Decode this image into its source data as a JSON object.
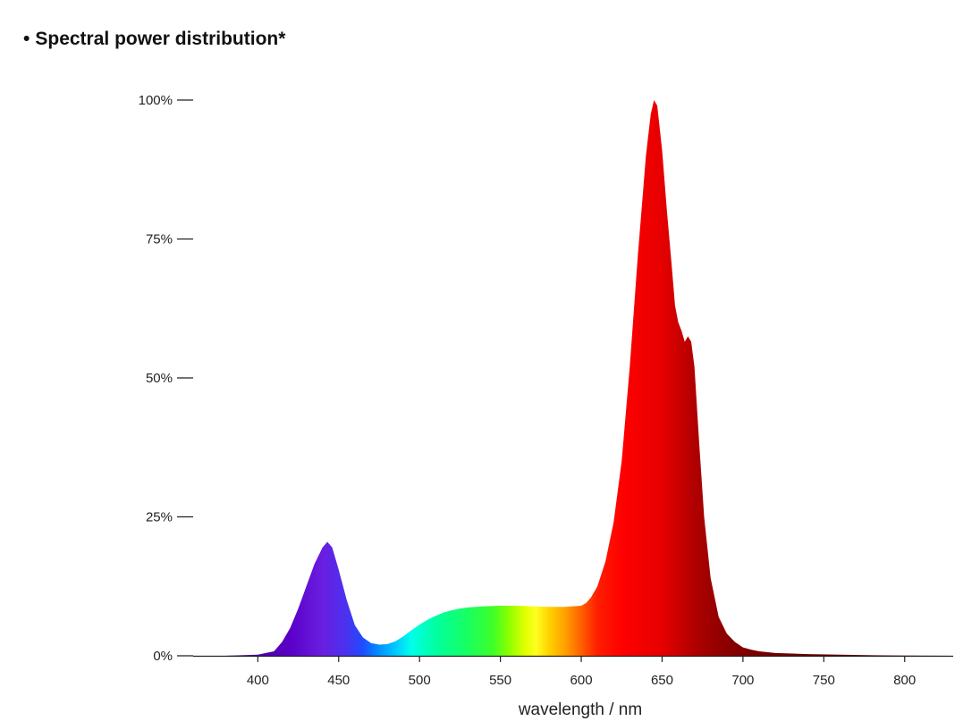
{
  "header": {
    "bullet": "•",
    "title": "Spectral power distribution*"
  },
  "chart_data": {
    "type": "area",
    "title": "Spectral power distribution*",
    "xlabel": "wavelength / nm",
    "ylabel": "",
    "xlim": [
      360,
      830
    ],
    "ylim": [
      0,
      100
    ],
    "x_ticks": [
      400,
      450,
      500,
      550,
      600,
      650,
      700,
      750,
      800
    ],
    "x_tick_labels": [
      "400",
      "450",
      "500",
      "550",
      "600",
      "650",
      "700",
      "750",
      "800"
    ],
    "y_ticks": [
      0,
      25,
      50,
      75,
      100
    ],
    "y_tick_labels": [
      "0%",
      "25%",
      "50%",
      "75%",
      "100%"
    ],
    "grid": false,
    "fill": "visible-spectrum gradient",
    "series": [
      {
        "x": [
          360,
          380,
          400,
          410,
          415,
          420,
          425,
          430,
          435,
          440,
          443,
          446,
          450,
          455,
          460,
          465,
          470,
          475,
          480,
          485,
          490,
          495,
          500,
          505,
          510,
          515,
          520,
          525,
          530,
          540,
          550,
          560,
          570,
          580,
          590,
          600,
          603,
          606,
          610,
          615,
          620,
          625,
          630,
          635,
          640,
          643,
          645,
          647,
          650,
          653,
          656,
          658,
          660,
          662,
          664,
          666,
          668,
          670,
          673,
          676,
          680,
          685,
          690,
          695,
          700,
          705,
          710,
          720,
          740,
          760,
          780,
          800,
          830
        ],
        "y": [
          0,
          0,
          0.2,
          0.8,
          2.5,
          5,
          8.5,
          12.5,
          16.5,
          19.5,
          20.5,
          19.5,
          15.5,
          10,
          5.5,
          3.3,
          2.3,
          2,
          2.1,
          2.6,
          3.5,
          4.6,
          5.6,
          6.5,
          7.2,
          7.8,
          8.2,
          8.5,
          8.7,
          8.9,
          9,
          9,
          8.9,
          8.8,
          8.8,
          9,
          9.5,
          10.5,
          12.5,
          17,
          24,
          35,
          52,
          72,
          90,
          97.5,
          100,
          99,
          91,
          80,
          70,
          63,
          60,
          58.5,
          56.5,
          57.5,
          56.5,
          52,
          38,
          25,
          14,
          7,
          4,
          2.5,
          1.5,
          1.1,
          0.8,
          0.5,
          0.3,
          0.2,
          0.1,
          0.05,
          0
        ]
      }
    ]
  }
}
